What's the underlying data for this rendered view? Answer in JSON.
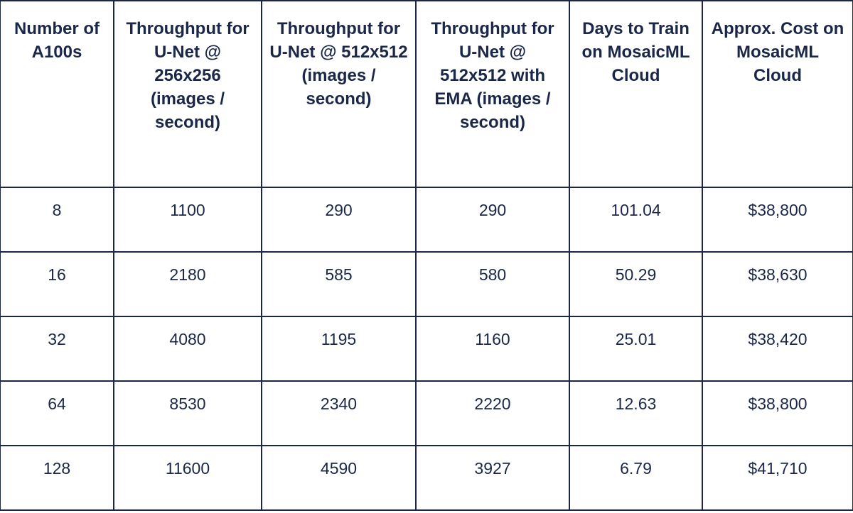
{
  "table": {
    "header": [
      "Number of A100s",
      "Throughput for U-Net @ 256x256 (images / second)",
      "Throughput for U-Net @ 512x512 (images / second)",
      "Throughput for U-Net @ 512x512 with EMA (images / second)",
      "Days to Train on MosaicML Cloud",
      "Approx. Cost on MosaicML Cloud"
    ],
    "rows": [
      [
        "8",
        "1100",
        "290",
        "290",
        "101.04",
        "$38,800"
      ],
      [
        "16",
        "2180",
        "585",
        "580",
        "50.29",
        "$38,630"
      ],
      [
        "32",
        "4080",
        "1195",
        "1160",
        "25.01",
        "$38,420"
      ],
      [
        "64",
        "8530",
        "2340",
        "2220",
        "12.63",
        "$38,800"
      ],
      [
        "128",
        "11600",
        "4590",
        "3927",
        "6.79",
        "$41,710"
      ]
    ]
  }
}
